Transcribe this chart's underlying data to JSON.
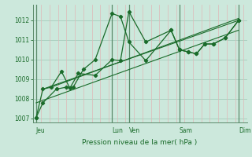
{
  "xlabel": "Pression niveau de la mer( hPa )",
  "bg_color": "#cce8dc",
  "grid_color": "#aad0c0",
  "line_color": "#1a6b2a",
  "minor_grid_color": "#e0b8b8",
  "vline_color": "#5a8a6a",
  "ylim": [
    1006.8,
    1012.8
  ],
  "yticks": [
    1007,
    1008,
    1009,
    1010,
    1011,
    1012
  ],
  "day_labels": [
    "Jeu",
    "Lun",
    "Ven",
    "Sam",
    "Dim"
  ],
  "day_positions": [
    0.0,
    4.5,
    5.5,
    8.5,
    12.0
  ],
  "vlines_x": [
    0.0,
    4.5,
    5.5,
    8.5,
    12.0
  ],
  "series1_x": [
    0.0,
    0.4,
    1.2,
    1.8,
    2.2,
    2.8,
    3.5,
    4.5,
    5.0,
    5.5,
    6.5,
    8.0,
    8.5,
    9.0,
    9.5,
    10.0,
    10.5,
    11.2,
    12.0
  ],
  "series1_y": [
    1007.05,
    1007.8,
    1008.5,
    1008.6,
    1008.6,
    1009.5,
    1010.0,
    1012.35,
    1012.2,
    1010.9,
    1009.95,
    1011.5,
    1010.5,
    1010.4,
    1010.3,
    1010.8,
    1010.8,
    1011.1,
    1012.0
  ],
  "series2_x": [
    0.0,
    0.4,
    0.9,
    1.5,
    2.0,
    2.5,
    3.5,
    4.5,
    5.0,
    5.5,
    6.5,
    8.0,
    8.5,
    9.0,
    9.5,
    10.0,
    10.5,
    11.2,
    12.0
  ],
  "series2_y": [
    1007.05,
    1008.5,
    1008.6,
    1009.4,
    1008.55,
    1009.3,
    1009.2,
    1010.0,
    1009.95,
    1012.45,
    1010.9,
    1011.5,
    1010.5,
    1010.4,
    1010.3,
    1010.8,
    1010.8,
    1011.1,
    1012.0
  ],
  "trend1_x": [
    0.0,
    12.0
  ],
  "trend1_y": [
    1007.8,
    1011.5
  ],
  "trend2_x": [
    0.4,
    12.0
  ],
  "trend2_y": [
    1008.5,
    1012.0
  ],
  "trend3_x": [
    0.9,
    12.0
  ],
  "trend3_y": [
    1008.6,
    1012.1
  ],
  "xlim": [
    -0.2,
    12.5
  ],
  "minor_x_step": 0.5
}
